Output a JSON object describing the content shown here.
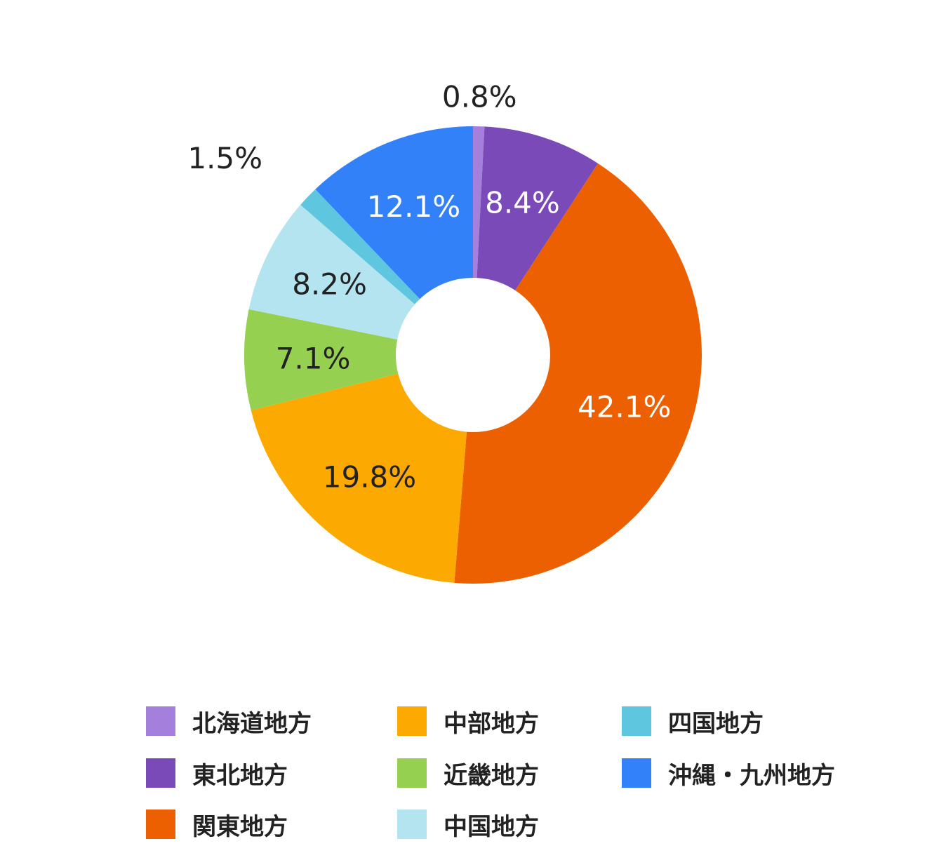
{
  "chart_data": {
    "type": "pie",
    "donut": true,
    "title": "",
    "categories": [
      "北海道地方",
      "東北地方",
      "関東地方",
      "中部地方",
      "近畿地方",
      "中国地方",
      "四国地方",
      "沖縄・九州地方"
    ],
    "values": [
      0.8,
      8.4,
      42.1,
      19.8,
      7.1,
      8.2,
      1.5,
      12.1
    ],
    "labels": [
      "0.8%",
      "8.4%",
      "42.1%",
      "19.8%",
      "7.1%",
      "8.2%",
      "1.5%",
      "12.1%"
    ],
    "colors": [
      "#a57fdc",
      "#7a4ab8",
      "#ec6002",
      "#fca902",
      "#95d050",
      "#b3e4ef",
      "#5ec7df",
      "#3381f8"
    ],
    "label_colors": [
      "#222222",
      "#ffffff",
      "#ffffff",
      "#222222",
      "#222222",
      "#222222",
      "#222222",
      "#ffffff"
    ],
    "legend_placement": "bottom"
  }
}
